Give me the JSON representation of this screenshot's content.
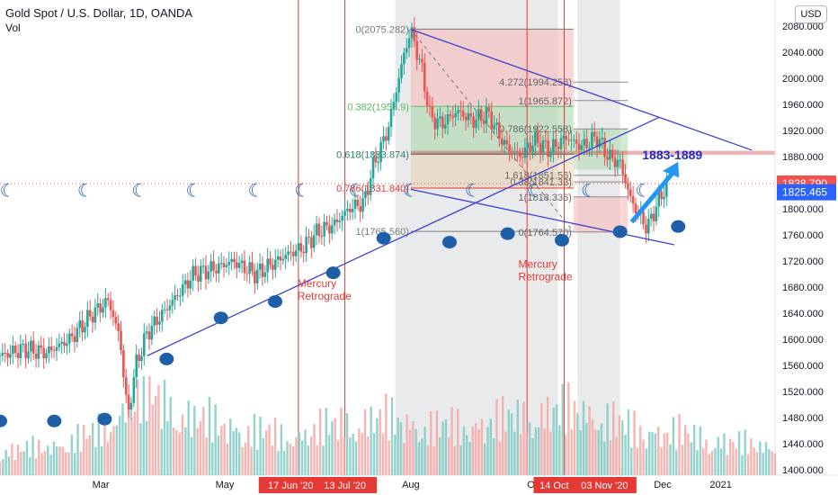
{
  "header": {
    "title": "Gold Spot / U.S. Dollar, 1D, OANDA",
    "indicator": "Vol",
    "currency_button": "USD"
  },
  "colors": {
    "up": "#26a69a",
    "down": "#ef5350",
    "trendline": "#3f3fd0",
    "fib_line": "#5a5a5a",
    "retrograde": "#e53935",
    "marker": "#1e5fa8",
    "projection_arrow": "#2196f3",
    "price_badge_last": "#ef5350",
    "price_badge_close": "#2962ff"
  },
  "chart_data": {
    "type": "candlestick",
    "title": "Gold Spot / U.S. Dollar, 1D, OANDA",
    "x_labels": [
      "Mar",
      "May",
      "Aug",
      "Oct",
      "Dec",
      "2021"
    ],
    "x_badges": [
      "17 Jun '20",
      "13 Jul '20",
      "14 Oct",
      "03 Nov '20"
    ],
    "y_ticks": [
      1400,
      1440,
      1480,
      1520,
      1560,
      1600,
      1640,
      1680,
      1720,
      1760,
      1800,
      1840,
      1880,
      1920,
      1960,
      2000,
      2040,
      2080
    ],
    "ylim": [
      1392,
      2120
    ],
    "y_tick_labels": [
      "1400.000",
      "1440.000",
      "1480.000",
      "1520.000",
      "1560.000",
      "1600.000",
      "1640.000",
      "1680.000",
      "1720.000",
      "1760.000",
      "1800.000",
      "1840.000",
      "1880.000",
      "1920.000",
      "1960.000",
      "2000.000",
      "2040.000",
      "2080.000"
    ],
    "price_badges": [
      {
        "label": "1838.790",
        "value": 1838.79,
        "role": "last"
      },
      {
        "label": "1825.465",
        "value": 1825.465,
        "role": "close"
      }
    ],
    "price_path": [
      [
        0,
        1575
      ],
      [
        0.03,
        1585
      ],
      [
        0.06,
        1580
      ],
      [
        0.09,
        1600
      ],
      [
        0.12,
        1640
      ],
      [
        0.14,
        1660
      ],
      [
        0.155,
        1600
      ],
      [
        0.165,
        1480
      ],
      [
        0.175,
        1560
      ],
      [
        0.19,
        1610
      ],
      [
        0.21,
        1640
      ],
      [
        0.23,
        1670
      ],
      [
        0.25,
        1700
      ],
      [
        0.28,
        1710
      ],
      [
        0.3,
        1720
      ],
      [
        0.33,
        1700
      ],
      [
        0.35,
        1715
      ],
      [
        0.37,
        1730
      ],
      [
        0.39,
        1740
      ],
      [
        0.41,
        1765
      ],
      [
        0.43,
        1775
      ],
      [
        0.45,
        1800
      ],
      [
        0.47,
        1810
      ],
      [
        0.48,
        1860
      ],
      [
        0.5,
        1920
      ],
      [
        0.51,
        1975
      ],
      [
        0.52,
        2030
      ],
      [
        0.53,
        2075
      ],
      [
        0.545,
        2010
      ],
      [
        0.555,
        1940
      ],
      [
        0.57,
        1930
      ],
      [
        0.59,
        1950
      ],
      [
        0.61,
        1935
      ],
      [
        0.63,
        1945
      ],
      [
        0.65,
        1900
      ],
      [
        0.67,
        1880
      ],
      [
        0.69,
        1905
      ],
      [
        0.71,
        1890
      ],
      [
        0.73,
        1910
      ],
      [
        0.75,
        1895
      ],
      [
        0.77,
        1910
      ],
      [
        0.785,
        1880
      ],
      [
        0.8,
        1870
      ],
      [
        0.815,
        1810
      ],
      [
        0.825,
        1790
      ],
      [
        0.835,
        1770
      ],
      [
        0.845,
        1800
      ],
      [
        0.855,
        1825
      ],
      [
        0.86,
        1838
      ]
    ],
    "trendlines": [
      {
        "p1": [
          0.19,
          1575
        ],
        "p2": [
          0.85,
          1940
        ],
        "color": "trendline"
      },
      {
        "p1": [
          0.53,
          2075
        ],
        "p2": [
          0.97,
          1890
        ],
        "color": "trendline"
      },
      {
        "p1": [
          0.53,
          1830
        ],
        "p2": [
          0.87,
          1745
        ],
        "color": "trendline"
      }
    ],
    "fib_retracement_1": {
      "x_range": [
        0.53,
        0.74
      ],
      "levels": [
        {
          "label": "0(2075.282)",
          "value": 2075.282
        },
        {
          "label": "0.382(1956.9)",
          "value": 1956.9
        },
        {
          "label": "0.618(1883.874)",
          "value": 1883.874
        },
        {
          "label": "0.786(1831.840)",
          "value": 1831.84
        },
        {
          "label": "1(1765.560)",
          "value": 1765.56
        }
      ]
    },
    "fib_extension_2": {
      "x_range": [
        0.74,
        0.81
      ],
      "levels": [
        {
          "label": "4.272(1994.258)",
          "value": 1994.258
        },
        {
          "label": "1(1965.872)",
          "value": 1965.872
        },
        {
          "label": "0.786(1922.558)",
          "value": 1922.558
        },
        {
          "label": "1.618(1851.56)",
          "value": 1851.56
        },
        {
          "label": "0.38(1841.33)",
          "value": 1841.33
        },
        {
          "label": "1(1818.336)",
          "value": 1818.336
        },
        {
          "label": "0(1764.570)",
          "value": 1764.57
        }
      ]
    },
    "retrograde_lines_x": [
      0.385,
      0.445,
      0.68,
      0.728
    ],
    "annotations": [
      {
        "text": "Mercury\nRetrograde",
        "x": 0.4,
        "value": 1680
      },
      {
        "text": "Mercury\nRetrograde",
        "x": 0.685,
        "value": 1710
      },
      {
        "text": "1883-1889",
        "x": 0.875,
        "value": 1884
      }
    ],
    "moon_markers_y": 1830,
    "moon_markers_x": [
      0.01,
      0.11,
      0.18,
      0.25,
      0.33,
      0.39,
      0.46,
      0.53,
      0.61,
      0.69,
      0.76,
      0.83
    ],
    "dot_markers": [
      [
        0.0,
        1475
      ],
      [
        0.07,
        1475
      ],
      [
        0.135,
        1478
      ],
      [
        0.215,
        1570
      ],
      [
        0.285,
        1633
      ],
      [
        0.355,
        1658
      ],
      [
        0.43,
        1702
      ],
      [
        0.495,
        1755
      ],
      [
        0.58,
        1749
      ],
      [
        0.655,
        1762
      ],
      [
        0.725,
        1752
      ],
      [
        0.8,
        1765
      ],
      [
        0.875,
        1773
      ]
    ],
    "volume_path": [
      0.25,
      0.3,
      0.45,
      0.9,
      0.6,
      0.5,
      0.4,
      0.55,
      0.6,
      0.5,
      0.55,
      0.65,
      0.7,
      0.5,
      0.45,
      0.35,
      0.3
    ],
    "gray_zones_x": [
      [
        0.51,
        0.72
      ],
      [
        0.745,
        0.8
      ]
    ]
  }
}
